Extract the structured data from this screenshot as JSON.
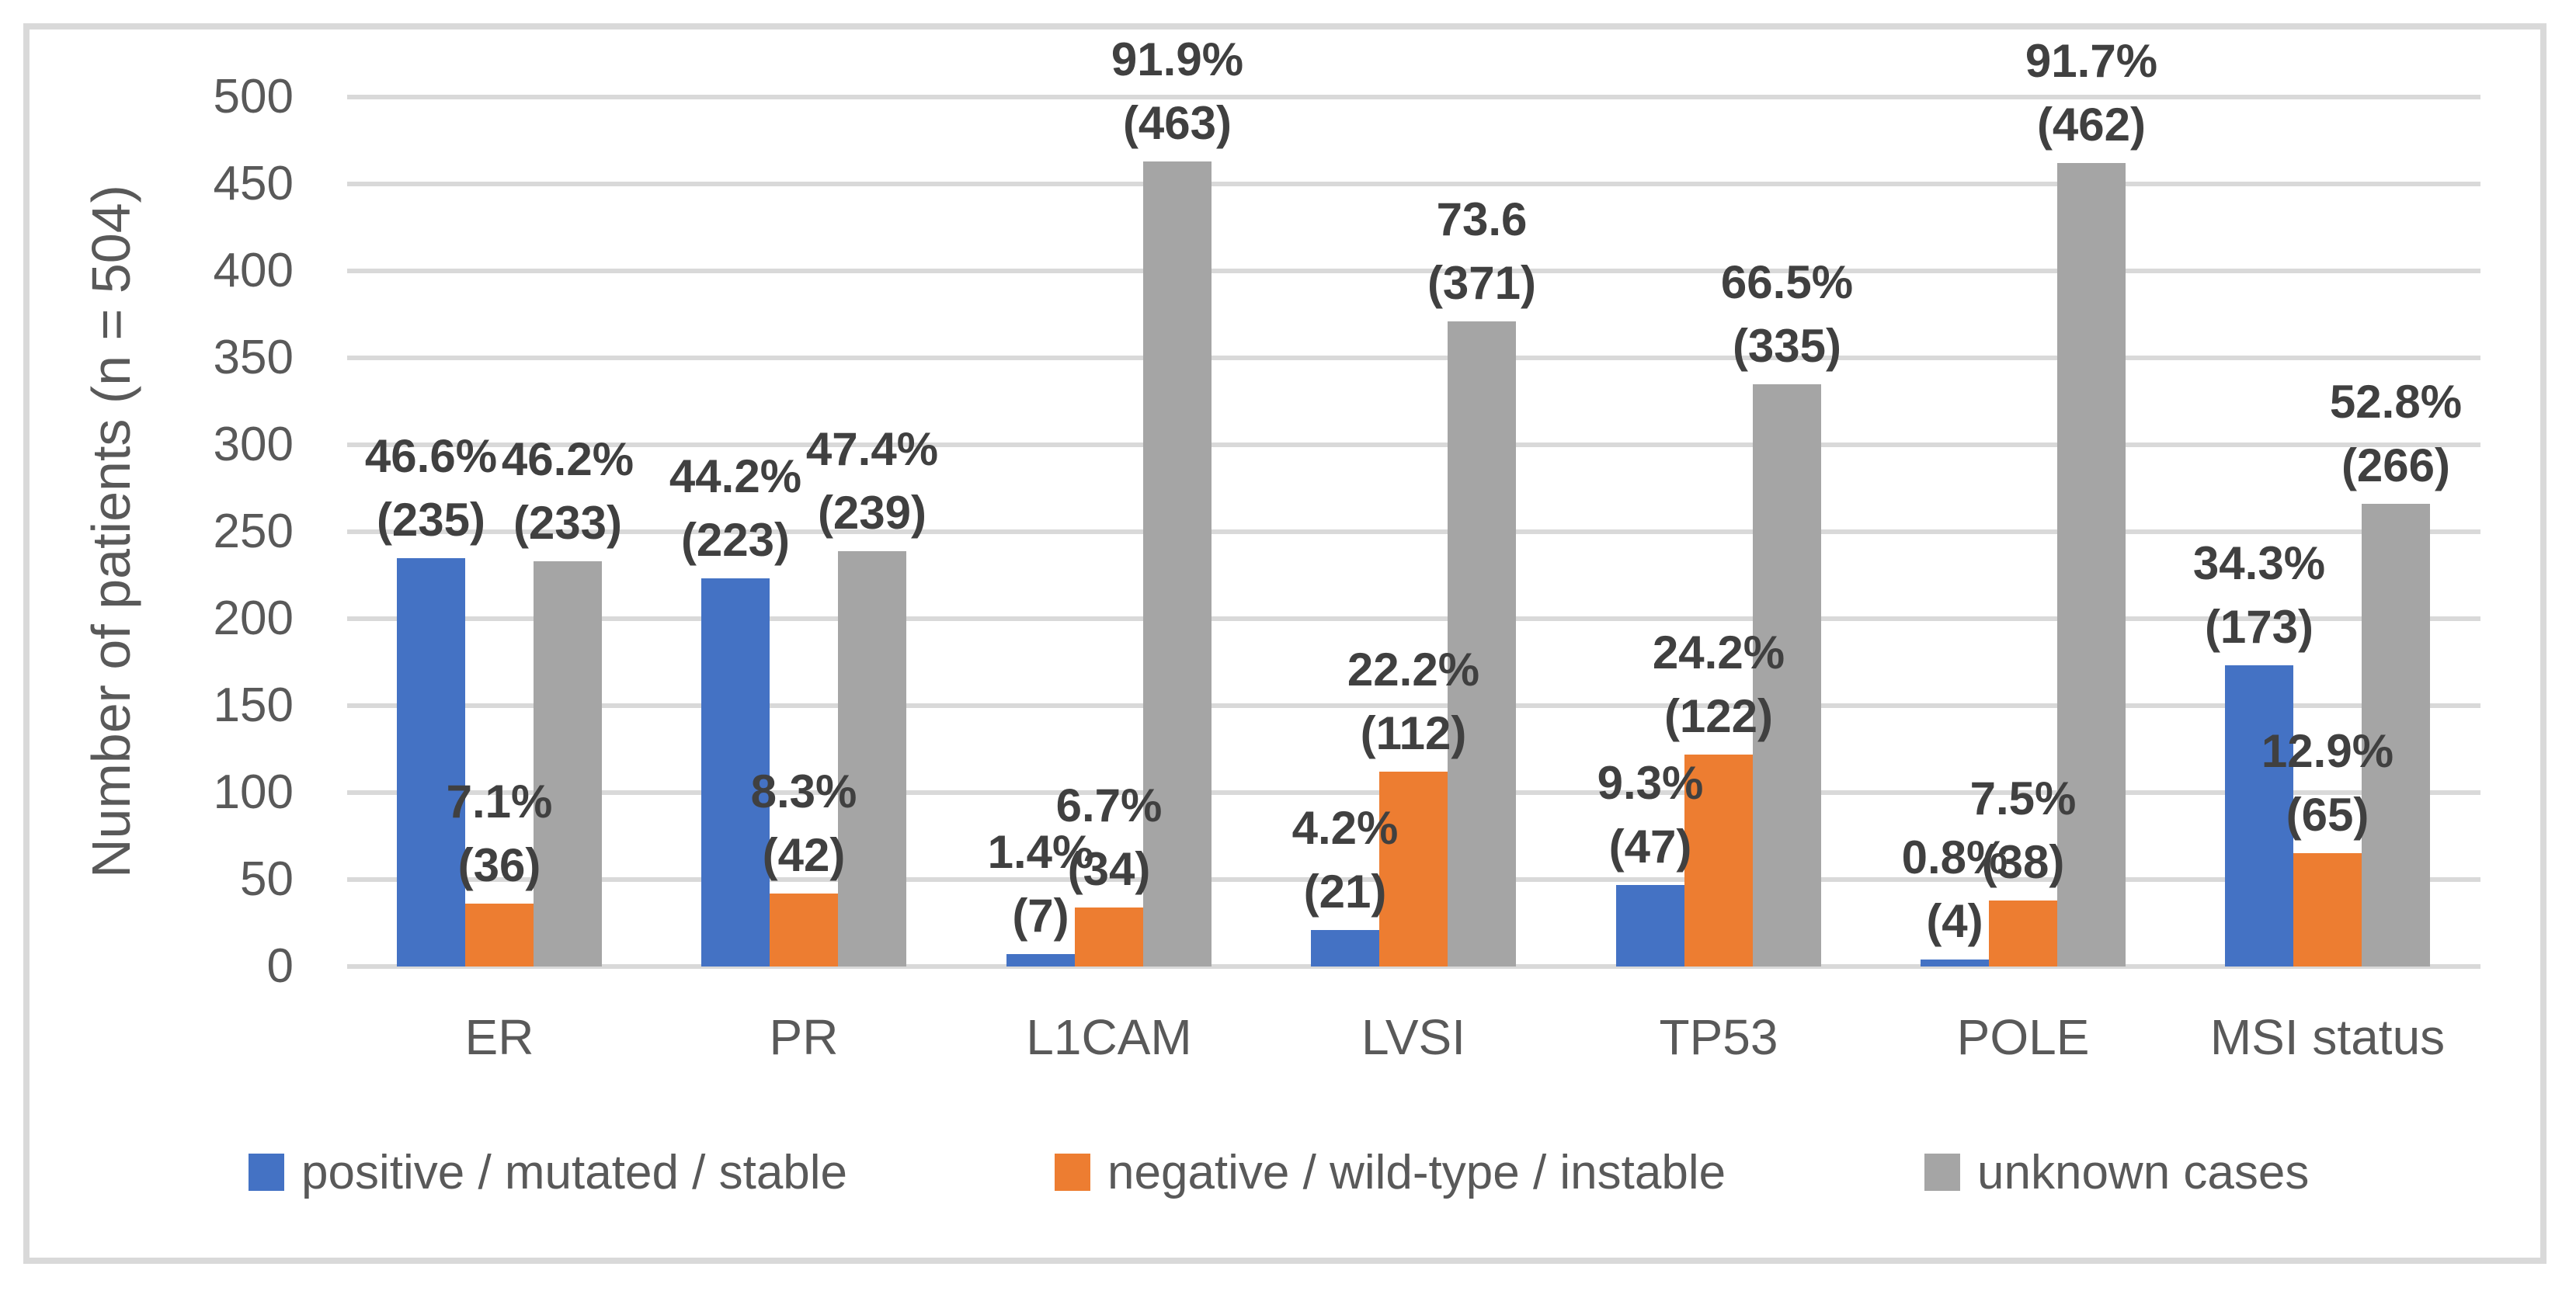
{
  "chart_data": {
    "type": "bar",
    "title": "",
    "ylabel": "Number of patients (n = 504)",
    "xlabel": "",
    "ylim": [
      0,
      500
    ],
    "yticks": [
      0,
      50,
      100,
      150,
      200,
      250,
      300,
      350,
      400,
      450,
      500
    ],
    "grid": "horizontal",
    "legend_position": "bottom",
    "categories": [
      "ER",
      "PR",
      "L1CAM",
      "LVSI",
      "TP53",
      "POLE",
      "MSI status"
    ],
    "series": [
      {
        "name": "positive / mutated / stable",
        "color": "#4472C4",
        "values": [
          235,
          223,
          7,
          21,
          47,
          4,
          173
        ],
        "labels_pct": [
          "46.6%",
          "44.2%",
          "1.4%",
          "4.2%",
          "9.3%",
          "0.8%",
          "34.3%"
        ],
        "labels_n": [
          "(235)",
          "(223)",
          "(7)",
          "(21)",
          "(47)",
          "(4)",
          "(173)"
        ]
      },
      {
        "name": "negative / wild-type / instable",
        "color": "#ED7D31",
        "values": [
          36,
          42,
          34,
          112,
          122,
          38,
          65
        ],
        "labels_pct": [
          "7.1%",
          "8.3%",
          "6.7%",
          "22.2%",
          "24.2%",
          "7.5%",
          "12.9%"
        ],
        "labels_n": [
          "(36)",
          "(42)",
          "(34)",
          "(112)",
          "(122)",
          "(38)",
          "(65)"
        ]
      },
      {
        "name": "unknown cases",
        "color": "#A5A5A5",
        "values": [
          233,
          239,
          463,
          371,
          335,
          462,
          266
        ],
        "labels_pct": [
          "46.2%",
          "47.4%",
          "91.9%",
          "73.6",
          "66.5%",
          "91.7%",
          "52.8%"
        ],
        "labels_n": [
          "(233)",
          "(239)",
          "(463)",
          "(371)",
          "(335)",
          "(462)",
          "(266)"
        ]
      }
    ],
    "colors": {
      "gridline": "#D9D9D9",
      "frame": "#D9D9D9",
      "axis_text": "#595959",
      "label_text": "#404040"
    }
  }
}
